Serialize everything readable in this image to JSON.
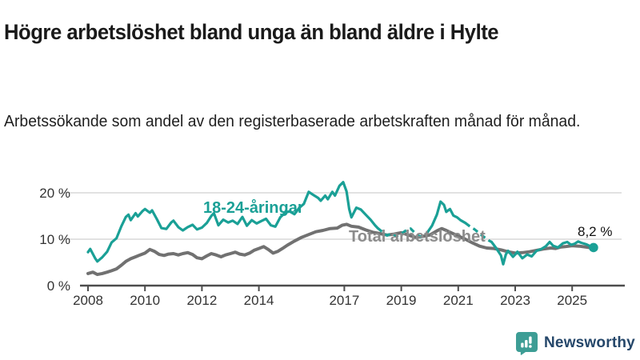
{
  "header": {
    "title": "Högre arbetslöshet bland unga än bland äldre i Hylte",
    "subtitle": "Arbetssökande som andel av den registerbaserade arbetskraften månad för månad."
  },
  "footer": {
    "brand": "Newsworthy",
    "logo_icon": "newsworthy-speech-bubble-bar-chart-icon"
  },
  "colors": {
    "youth_line": "#1aa096",
    "total_line": "#717171",
    "total_label_text": "#8c8c8c",
    "grid": "#d9d9d9",
    "axis": "#4d4d4d",
    "tick_text": "#333333",
    "end_label_text": "#111111",
    "brand_icon": "#3d9d95",
    "brand_text": "#25476a"
  },
  "chart_data": {
    "type": "line",
    "title": "Högre arbetslöshet bland unga än bland äldre i Hylte",
    "xlabel": "",
    "ylabel": "Arbetssökande som andel av den registerbaserade arbetskraften",
    "x_unit": "decimal year (monthly values)",
    "ylim": [
      0,
      23.5
    ],
    "xlim": [
      2007.7,
      2026.2
    ],
    "grid": "horizontal",
    "legend_position": "inline-labels",
    "y_ticks": [
      {
        "value": 0,
        "label": "0 %"
      },
      {
        "value": 10,
        "label": "10 %"
      },
      {
        "value": 20,
        "label": "20 %"
      }
    ],
    "x_ticks": [
      {
        "value": 2008,
        "label": "2008"
      },
      {
        "value": 2010,
        "label": "2010"
      },
      {
        "value": 2012,
        "label": "2012"
      },
      {
        "value": 2014,
        "label": "2014"
      },
      {
        "value": 2017,
        "label": "2017"
      },
      {
        "value": 2019,
        "label": "2019"
      },
      {
        "value": 2021,
        "label": "2021"
      },
      {
        "value": 2023,
        "label": "2023"
      },
      {
        "value": 2025,
        "label": "2025"
      }
    ],
    "series": [
      {
        "name": "18-24-åringar",
        "color": "#1aa096",
        "width": 3.2,
        "end_label": "8,2 %",
        "end_value": 8.2,
        "end_dot": [
          2025.75,
          8.2
        ],
        "segments": [
          {
            "style": "solid",
            "points": [
              [
                2008.0,
                7.2
              ],
              [
                2008.08,
                7.9
              ],
              [
                2008.25,
                5.9
              ],
              [
                2008.33,
                5.2
              ],
              [
                2008.5,
                6.1
              ],
              [
                2008.67,
                7.3
              ],
              [
                2008.83,
                9.3
              ],
              [
                2009.0,
                10.2
              ],
              [
                2009.17,
                12.8
              ],
              [
                2009.33,
                14.8
              ],
              [
                2009.42,
                15.3
              ],
              [
                2009.5,
                14.1
              ],
              [
                2009.67,
                15.6
              ],
              [
                2009.75,
                14.9
              ],
              [
                2009.92,
                16.1
              ],
              [
                2010.0,
                16.5
              ],
              [
                2010.17,
                15.7
              ],
              [
                2010.25,
                16.2
              ],
              [
                2010.42,
                14.3
              ],
              [
                2010.58,
                12.4
              ],
              [
                2010.75,
                12.2
              ],
              [
                2010.92,
                13.6
              ],
              [
                2011.0,
                14.0
              ],
              [
                2011.17,
                12.6
              ],
              [
                2011.33,
                11.9
              ],
              [
                2011.5,
                12.6
              ],
              [
                2011.67,
                13.1
              ],
              [
                2011.83,
                12.1
              ],
              [
                2012.0,
                12.5
              ],
              [
                2012.17,
                13.5
              ],
              [
                2012.33,
                15.0
              ],
              [
                2012.42,
                15.6
              ],
              [
                2012.58,
                13.0
              ],
              [
                2012.75,
                14.2
              ],
              [
                2012.92,
                13.6
              ],
              [
                2013.08,
                14.0
              ],
              [
                2013.25,
                13.3
              ],
              [
                2013.42,
                14.8
              ],
              [
                2013.58,
                12.9
              ],
              [
                2013.75,
                14.1
              ],
              [
                2013.92,
                13.4
              ],
              [
                2014.08,
                13.9
              ],
              [
                2014.25,
                14.4
              ],
              [
                2014.42,
                13.0
              ],
              [
                2014.58,
                12.7
              ],
              [
                2014.75,
                14.7
              ],
              [
                2014.92,
                15.7
              ],
              [
                2015.08,
                16.0
              ],
              [
                2015.25,
                15.4
              ],
              [
                2015.42,
                16.8
              ],
              [
                2015.58,
                17.6
              ],
              [
                2015.75,
                20.2
              ],
              [
                2015.92,
                19.5
              ],
              [
                2016.08,
                18.9
              ],
              [
                2016.17,
                18.3
              ],
              [
                2016.33,
                19.4
              ],
              [
                2016.42,
                18.6
              ],
              [
                2016.58,
                20.2
              ],
              [
                2016.67,
                19.4
              ],
              [
                2016.83,
                21.5
              ],
              [
                2016.96,
                22.3
              ],
              [
                2017.08,
                20.3
              ],
              [
                2017.17,
                16.5
              ],
              [
                2017.25,
                14.7
              ],
              [
                2017.42,
                16.8
              ],
              [
                2017.58,
                16.4
              ],
              [
                2017.75,
                15.3
              ],
              [
                2017.92,
                14.2
              ],
              [
                2018.08,
                13.0
              ],
              [
                2018.17,
                12.4
              ]
            ]
          },
          {
            "style": "dashed",
            "points": [
              [
                2018.17,
                12.4
              ],
              [
                2018.33,
                11.6
              ],
              [
                2018.5,
                10.8
              ],
              [
                2018.67,
                11.3
              ],
              [
                2018.83,
                10.6
              ],
              [
                2019.0,
                11.2
              ],
              [
                2019.17,
                11.9
              ],
              [
                2019.33,
                12.3
              ],
              [
                2019.5,
                11.2
              ],
              [
                2019.67,
                10.5
              ],
              [
                2019.83,
                10.9
              ],
              [
                2019.92,
                11.5
              ]
            ]
          },
          {
            "style": "solid",
            "points": [
              [
                2019.92,
                11.5
              ],
              [
                2020.08,
                12.9
              ],
              [
                2020.25,
                15.3
              ],
              [
                2020.38,
                18.1
              ],
              [
                2020.5,
                17.4
              ],
              [
                2020.58,
                15.9
              ],
              [
                2020.71,
                16.5
              ],
              [
                2020.83,
                15.1
              ],
              [
                2020.96,
                14.7
              ],
              [
                2021.08,
                14.1
              ],
              [
                2021.25,
                13.5
              ]
            ]
          },
          {
            "style": "dashed",
            "points": [
              [
                2021.25,
                13.5
              ],
              [
                2021.42,
                12.7
              ],
              [
                2021.58,
                12.1
              ],
              [
                2021.75,
                11.2
              ],
              [
                2021.92,
                10.4
              ],
              [
                2022.08,
                9.7
              ],
              [
                2022.17,
                9.4
              ]
            ]
          },
          {
            "style": "solid",
            "points": [
              [
                2022.17,
                9.4
              ],
              [
                2022.33,
                8.1
              ],
              [
                2022.5,
                6.5
              ],
              [
                2022.58,
                4.6
              ],
              [
                2022.67,
                6.7
              ],
              [
                2022.75,
                7.5
              ],
              [
                2022.92,
                6.2
              ],
              [
                2023.0,
                6.7
              ],
              [
                2023.08,
                7.3
              ],
              [
                2023.25,
                5.9
              ],
              [
                2023.42,
                6.7
              ],
              [
                2023.58,
                6.3
              ],
              [
                2023.75,
                7.5
              ],
              [
                2023.92,
                7.9
              ],
              [
                2024.08,
                8.5
              ],
              [
                2024.21,
                9.4
              ],
              [
                2024.33,
                8.6
              ],
              [
                2024.5,
                8.2
              ],
              [
                2024.67,
                9.1
              ],
              [
                2024.83,
                9.4
              ],
              [
                2024.96,
                8.8
              ],
              [
                2025.08,
                9.0
              ],
              [
                2025.21,
                9.5
              ],
              [
                2025.33,
                9.2
              ],
              [
                2025.5,
                8.9
              ],
              [
                2025.63,
                8.5
              ],
              [
                2025.75,
                8.2
              ]
            ]
          }
        ]
      },
      {
        "name": "Total arbetslöshet",
        "color": "#717171",
        "width": 4,
        "segments": [
          {
            "style": "solid",
            "points": [
              [
                2008.0,
                2.6
              ],
              [
                2008.17,
                2.9
              ],
              [
                2008.33,
                2.4
              ],
              [
                2008.5,
                2.6
              ],
              [
                2008.67,
                2.9
              ],
              [
                2008.83,
                3.2
              ],
              [
                2009.0,
                3.6
              ],
              [
                2009.17,
                4.4
              ],
              [
                2009.33,
                5.2
              ],
              [
                2009.5,
                5.8
              ],
              [
                2009.67,
                6.2
              ],
              [
                2009.83,
                6.6
              ],
              [
                2010.0,
                7.0
              ],
              [
                2010.17,
                7.8
              ],
              [
                2010.33,
                7.4
              ],
              [
                2010.5,
                6.7
              ],
              [
                2010.67,
                6.5
              ],
              [
                2010.83,
                6.8
              ],
              [
                2011.0,
                6.9
              ],
              [
                2011.17,
                6.6
              ],
              [
                2011.33,
                6.9
              ],
              [
                2011.5,
                7.1
              ],
              [
                2011.67,
                6.7
              ],
              [
                2011.83,
                6.0
              ],
              [
                2012.0,
                5.8
              ],
              [
                2012.17,
                6.4
              ],
              [
                2012.33,
                6.9
              ],
              [
                2012.5,
                6.6
              ],
              [
                2012.67,
                6.2
              ],
              [
                2012.83,
                6.6
              ],
              [
                2013.0,
                6.9
              ],
              [
                2013.17,
                7.2
              ],
              [
                2013.33,
                6.8
              ],
              [
                2013.5,
                6.6
              ],
              [
                2013.67,
                7.0
              ],
              [
                2013.83,
                7.6
              ],
              [
                2014.0,
                8.0
              ],
              [
                2014.17,
                8.4
              ],
              [
                2014.33,
                7.8
              ],
              [
                2014.5,
                7.0
              ],
              [
                2014.67,
                7.4
              ],
              [
                2014.83,
                8.0
              ],
              [
                2015.0,
                8.7
              ],
              [
                2015.25,
                9.6
              ],
              [
                2015.5,
                10.4
              ],
              [
                2015.75,
                11.0
              ],
              [
                2016.0,
                11.6
              ],
              [
                2016.25,
                11.9
              ],
              [
                2016.5,
                12.3
              ],
              [
                2016.75,
                12.4
              ],
              [
                2016.92,
                13.0
              ],
              [
                2017.08,
                13.2
              ],
              [
                2017.25,
                12.8
              ],
              [
                2017.5,
                12.6
              ],
              [
                2017.75,
                12.0
              ],
              [
                2018.0,
                11.5
              ],
              [
                2018.25,
                11.2
              ],
              [
                2018.5,
                10.9
              ],
              [
                2018.75,
                11.1
              ],
              [
                2019.0,
                11.4
              ],
              [
                2019.25,
                10.9
              ],
              [
                2019.5,
                10.4
              ],
              [
                2019.75,
                10.6
              ],
              [
                2020.0,
                10.9
              ],
              [
                2020.25,
                11.8
              ],
              [
                2020.42,
                12.3
              ],
              [
                2020.58,
                11.9
              ],
              [
                2020.75,
                11.4
              ],
              [
                2021.0,
                10.7
              ],
              [
                2021.25,
                10.0
              ],
              [
                2021.5,
                9.2
              ],
              [
                2021.75,
                8.5
              ],
              [
                2022.0,
                8.1
              ],
              [
                2022.25,
                8.0
              ],
              [
                2022.5,
                7.7
              ],
              [
                2022.75,
                7.3
              ],
              [
                2023.0,
                7.0
              ],
              [
                2023.25,
                7.1
              ],
              [
                2023.5,
                7.3
              ],
              [
                2023.75,
                7.6
              ],
              [
                2024.0,
                7.9
              ],
              [
                2024.25,
                8.1
              ],
              [
                2024.42,
                8.0
              ],
              [
                2024.58,
                8.3
              ],
              [
                2024.75,
                8.4
              ],
              [
                2025.0,
                8.6
              ],
              [
                2025.25,
                8.5
              ],
              [
                2025.5,
                8.3
              ],
              [
                2025.71,
                8.1
              ]
            ]
          }
        ]
      }
    ]
  }
}
